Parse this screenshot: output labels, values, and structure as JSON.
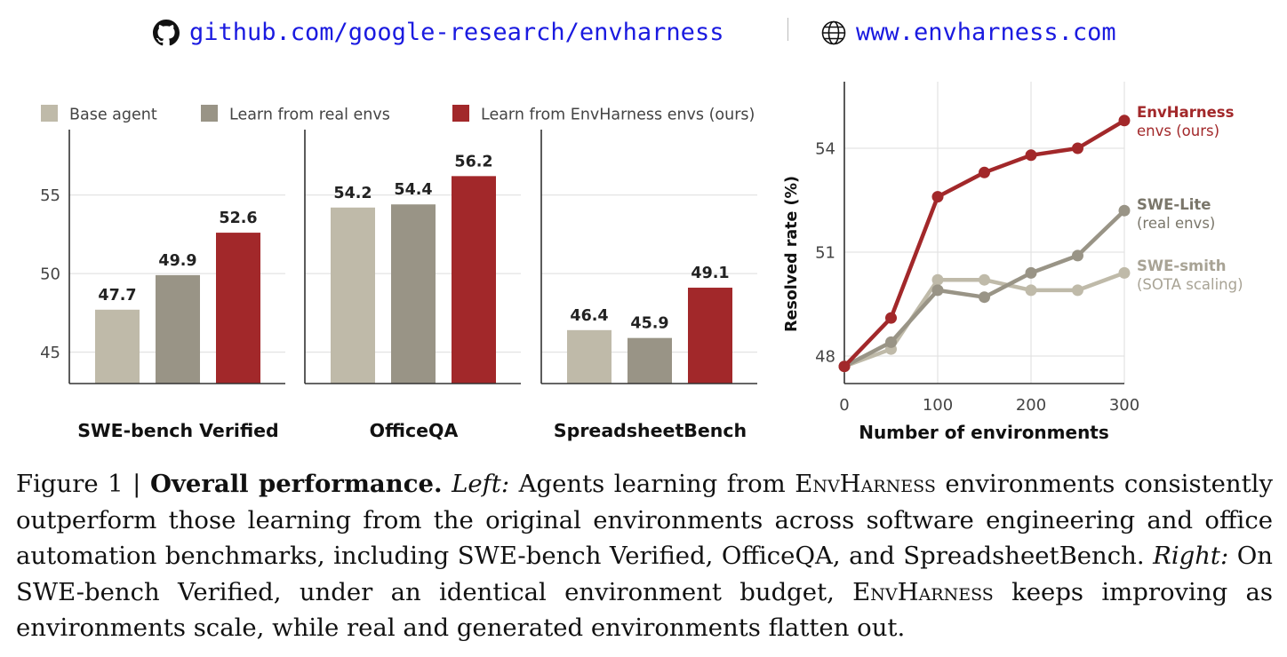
{
  "header": {
    "github_link": "github.com/google-research/envharness",
    "web_link": "www.envharness.com",
    "github_icon": "github-icon",
    "web_icon": "globe-icon"
  },
  "colors": {
    "base": "#bfbaa9",
    "real": "#999486",
    "ours": "#a2282a",
    "axis": "#333333",
    "grid": "#e3e3e3"
  },
  "chart_data": [
    {
      "type": "bar",
      "legend": [
        "Base agent",
        "Learn from real envs",
        "Learn from EnvHarness envs (ours)"
      ],
      "legend_placement": "top",
      "ylim": [
        43,
        59
      ],
      "yticks": [
        45,
        50,
        55
      ],
      "grid": "horizontal",
      "panels": [
        {
          "title": "SWE-bench Verified",
          "values": [
            47.7,
            49.9,
            52.6
          ]
        },
        {
          "title": "OfficeQA",
          "values": [
            54.2,
            54.4,
            56.2
          ]
        },
        {
          "title": "SpreadsheetBench",
          "values": [
            46.4,
            45.9,
            49.1
          ]
        }
      ]
    },
    {
      "type": "line",
      "xlabel": "Number of environments",
      "ylabel": "Resolved rate (%)",
      "xticks": [
        0,
        100,
        200,
        300
      ],
      "yticks": [
        48,
        51,
        54
      ],
      "xlim": [
        0,
        300
      ],
      "ylim": [
        47.7,
        55.9
      ],
      "grid": true,
      "x": [
        0,
        50,
        100,
        150,
        200,
        250,
        300
      ],
      "series": [
        {
          "name": "EnvHarness",
          "sub": "envs (ours)",
          "values": [
            47.7,
            49.1,
            52.6,
            53.3,
            53.8,
            54.0,
            54.8
          ]
        },
        {
          "name": "SWE-Lite",
          "sub": "(real envs)",
          "values": [
            47.7,
            48.4,
            49.9,
            49.7,
            50.4,
            50.9,
            52.2
          ]
        },
        {
          "name": "SWE-smith",
          "sub": "(SOTA scaling)",
          "values": [
            47.7,
            48.2,
            50.2,
            50.2,
            49.9,
            49.9,
            50.4
          ]
        }
      ]
    }
  ],
  "caption": {
    "label": "Figure 1 | ",
    "bold": "Overall performance.",
    "left_label": "Left:",
    "text1": " Agents learning from ",
    "envharness": "EnvHarness",
    "text2": " environments consistently outperform those learning from the original environments across software engineering and office automation benchmarks, including SWE-bench Verified, OfficeQA, and SpreadsheetBench. ",
    "right_label": "Right:",
    "text3": " On SWE-bench Verified, under an identical environment budget, ",
    "text4": " keeps improving as environments scale, while real and generated environments flatten out."
  }
}
